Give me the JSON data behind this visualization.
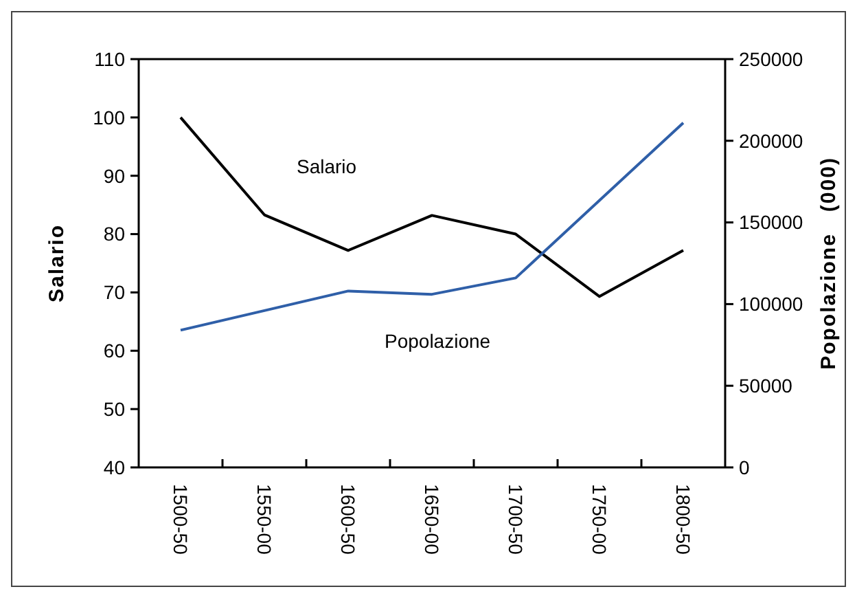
{
  "chart_data": {
    "type": "line",
    "categories": [
      "1500-50",
      "1550-00",
      "1600-50",
      "1650-00",
      "1700-50",
      "1750-00",
      "1800-50"
    ],
    "ylabel": "Salario",
    "y2label": "Popolazione   (000)",
    "ylim": [
      40,
      110
    ],
    "yticks": [
      40,
      50,
      60,
      70,
      80,
      90,
      100,
      110
    ],
    "y2lim": [
      0,
      250000
    ],
    "y2ticks": [
      0,
      50000,
      100000,
      150000,
      200000,
      250000
    ],
    "grid": false,
    "marker": "none",
    "series": [
      {
        "name": "Salario",
        "color": "#000000",
        "values": [
          100,
          83.3,
          77.2,
          83.2,
          80,
          69.3,
          77.2
        ]
      },
      {
        "name": "Popolazione",
        "color": "#2f5fa8",
        "axis": "y2",
        "values": [
          84000,
          null,
          108000,
          106000,
          116000,
          null,
          211000
        ]
      }
    ]
  }
}
